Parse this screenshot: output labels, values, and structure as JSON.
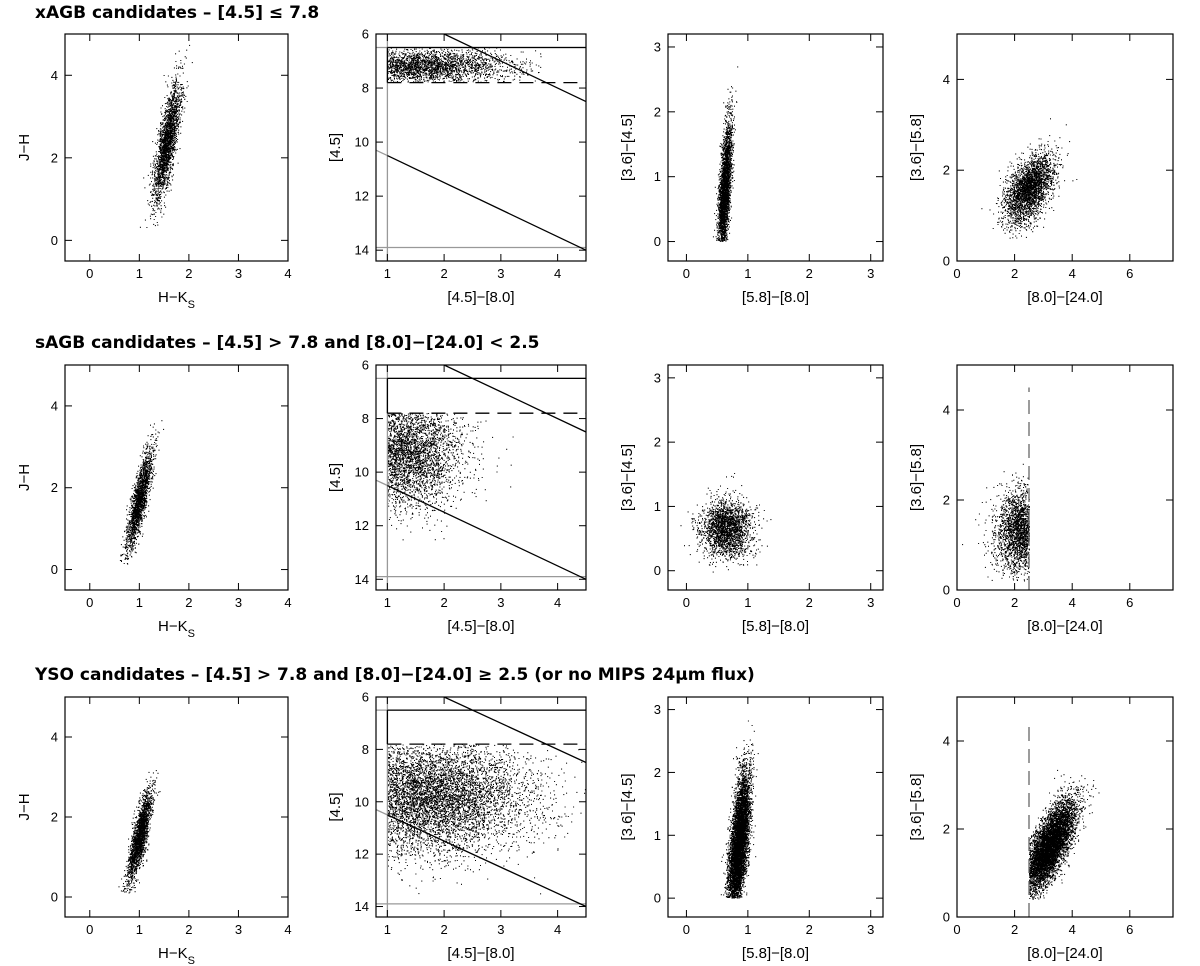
{
  "chart_data": [
    {
      "type": "scatter",
      "title": "xAGB candidates – [4.5] ≤ 7.8",
      "panels": [
        {
          "type": "scatter",
          "xlabel": "H−K",
          "xlabel_sub": "S",
          "ylabel": "J−H",
          "xlim": [
            -0.5,
            4
          ],
          "ylim": [
            -0.5,
            5
          ],
          "xticks": [
            "0",
            "1",
            "2",
            "3",
            "4"
          ],
          "yticks": [
            "0",
            "2",
            "4"
          ],
          "density": {
            "center": [
              1.55,
              2.35
            ],
            "spread": [
              0.45,
              0.75
            ],
            "orient": 1.3,
            "count": 2300,
            "extent": [
              [
                0.3,
                2.8
              ],
              [
                0.3,
                4.8
              ]
            ]
          },
          "lines": []
        },
        {
          "type": "scatter",
          "xlabel": "[4.5]−[8.0]",
          "ylabel": "[4.5]",
          "xlim": [
            0.8,
            4.5
          ],
          "ylim": [
            14.4,
            6
          ],
          "yinvert": true,
          "xticks": [
            "1",
            "2",
            "3",
            "4"
          ],
          "yticks": [
            "6",
            "8",
            "10",
            "12",
            "14"
          ],
          "density": {
            "center": [
              1.6,
              7.2
            ],
            "spread": [
              0.8,
              0.3
            ],
            "orient": 0,
            "count": 3000,
            "extent": [
              [
                1.0,
                3.7
              ],
              [
                6.5,
                7.8
              ]
            ]
          },
          "lines": [
            {
              "x": [
                0.8,
                4.5
              ],
              "y": [
                6.5,
                6.5
              ],
              "color": "#999999",
              "dash": false
            },
            {
              "x": [
                0.8,
                4.5
              ],
              "y": [
                13.9,
                13.9
              ],
              "color": "#999999",
              "dash": false
            },
            {
              "x": [
                1.0,
                1.0
              ],
              "y": [
                6.0,
                14.4
              ],
              "color": "#999999",
              "dash": false
            },
            {
              "x": [
                0.8,
                1.0
              ],
              "y": [
                10.3,
                10.5
              ],
              "color": "#999999",
              "dash": false
            },
            {
              "x": [
                1.0,
                4.5
              ],
              "y": [
                10.5,
                14.0
              ],
              "color": "#000000",
              "dash": false
            },
            {
              "x": [
                1.0,
                1.0
              ],
              "y": [
                6.5,
                7.8
              ],
              "color": "#000000",
              "dash": false
            },
            {
              "x": [
                1.0,
                4.5
              ],
              "y": [
                6.5,
                6.5
              ],
              "color": "#000000",
              "dash": false
            },
            {
              "x": [
                2.0,
                4.5
              ],
              "y": [
                6.0,
                8.5
              ],
              "color": "#000000",
              "dash": false
            },
            {
              "x": [
                1.0,
                4.5
              ],
              "y": [
                7.8,
                7.8
              ],
              "color": "#000000",
              "dash": true
            }
          ]
        },
        {
          "type": "scatter",
          "xlabel": "[5.8]−[8.0]",
          "ylabel": "[3.6]−[4.5]",
          "xlim": [
            -0.3,
            3.2
          ],
          "ylim": [
            -0.3,
            3.2
          ],
          "xticks": [
            "0",
            "1",
            "2",
            "3"
          ],
          "yticks": [
            "0",
            "1",
            "2",
            "3"
          ],
          "density": {
            "center": [
              0.62,
              0.75
            ],
            "spread": [
              0.22,
              0.55
            ],
            "orient": 1.45,
            "count": 3000,
            "extent": [
              [
                -0.1,
                1.8
              ],
              [
                0.0,
                2.7
              ]
            ]
          },
          "lines": []
        },
        {
          "type": "scatter",
          "xlabel": "[8.0]−[24.0]",
          "ylabel": "[3.6]−[5.8]",
          "xlim": [
            0,
            7.5
          ],
          "ylim": [
            0,
            5
          ],
          "xticks": [
            "0",
            "2",
            "4",
            "6"
          ],
          "yticks": [
            "0",
            "2",
            "4"
          ],
          "density": {
            "center": [
              2.5,
              1.6
            ],
            "spread": [
              0.9,
              0.8
            ],
            "orient": 0.3,
            "count": 2800,
            "extent": [
              [
                0.2,
                5.8
              ],
              [
                0.5,
                4.5
              ]
            ]
          },
          "lines": []
        }
      ]
    },
    {
      "type": "scatter",
      "title": "sAGB candidates – [4.5] > 7.8 and [8.0]−[24.0] < 2.5",
      "panels": [
        {
          "type": "scatter",
          "xlabel": "H−K",
          "xlabel_sub": "S",
          "ylabel": "J−H",
          "xlim": [
            -0.5,
            4
          ],
          "ylim": [
            -0.5,
            5
          ],
          "xticks": [
            "0",
            "1",
            "2",
            "3",
            "4"
          ],
          "yticks": [
            "0",
            "2",
            "4"
          ],
          "density": {
            "center": [
              1.0,
              1.7
            ],
            "spread": [
              0.35,
              0.65
            ],
            "orient": 1.25,
            "count": 2000,
            "extent": [
              [
                0.1,
                2.2
              ],
              [
                0.1,
                3.8
              ]
            ]
          },
          "lines": []
        },
        {
          "type": "scatter",
          "xlabel": "[4.5]−[8.0]",
          "ylabel": "[4.5]",
          "xlim": [
            0.8,
            4.5
          ],
          "ylim": [
            14.4,
            6
          ],
          "yinvert": true,
          "xticks": [
            "1",
            "2",
            "3",
            "4"
          ],
          "yticks": [
            "6",
            "8",
            "10",
            "12",
            "14"
          ],
          "density": {
            "center": [
              1.3,
              9.3
            ],
            "spread": [
              0.5,
              1.0
            ],
            "orient": 0,
            "count": 4200,
            "extent": [
              [
                1.0,
                4.2
              ],
              [
                7.8,
                13.0
              ]
            ]
          },
          "lines": [
            {
              "x": [
                0.8,
                4.5
              ],
              "y": [
                6.5,
                6.5
              ],
              "color": "#999999",
              "dash": false
            },
            {
              "x": [
                0.8,
                4.5
              ],
              "y": [
                13.9,
                13.9
              ],
              "color": "#999999",
              "dash": false
            },
            {
              "x": [
                1.0,
                1.0
              ],
              "y": [
                6.0,
                14.4
              ],
              "color": "#999999",
              "dash": false
            },
            {
              "x": [
                0.8,
                1.0
              ],
              "y": [
                10.3,
                10.5
              ],
              "color": "#999999",
              "dash": false
            },
            {
              "x": [
                1.0,
                4.5
              ],
              "y": [
                10.5,
                14.0
              ],
              "color": "#000000",
              "dash": false
            },
            {
              "x": [
                1.0,
                1.0
              ],
              "y": [
                6.5,
                7.8
              ],
              "color": "#000000",
              "dash": false
            },
            {
              "x": [
                1.0,
                4.5
              ],
              "y": [
                6.5,
                6.5
              ],
              "color": "#000000",
              "dash": false
            },
            {
              "x": [
                2.0,
                4.5
              ],
              "y": [
                6.0,
                8.5
              ],
              "color": "#000000",
              "dash": false
            },
            {
              "x": [
                1.0,
                4.5
              ],
              "y": [
                7.8,
                7.8
              ],
              "color": "#000000",
              "dash": true
            }
          ]
        },
        {
          "type": "scatter",
          "xlabel": "[5.8]−[8.0]",
          "ylabel": "[3.6]−[4.5]",
          "xlim": [
            -0.3,
            3.2
          ],
          "ylim": [
            -0.3,
            3.2
          ],
          "xticks": [
            "0",
            "1",
            "2",
            "3"
          ],
          "yticks": [
            "0",
            "1",
            "2",
            "3"
          ],
          "density": {
            "center": [
              0.65,
              0.65
            ],
            "spread": [
              0.2,
              0.22
            ],
            "orient": 0,
            "count": 2200,
            "extent": [
              [
                -0.1,
                1.8
              ],
              [
                -0.1,
                2.6
              ]
            ]
          },
          "lines": []
        },
        {
          "type": "scatter",
          "xlabel": "[8.0]−[24.0]",
          "ylabel": "[3.6]−[5.8]",
          "xlim": [
            0,
            7.5
          ],
          "ylim": [
            0,
            5
          ],
          "xticks": [
            "0",
            "2",
            "4",
            "6"
          ],
          "yticks": [
            "0",
            "2",
            "4"
          ],
          "density": {
            "center": [
              2.2,
              1.3
            ],
            "spread": [
              0.45,
              0.45
            ],
            "orient": 0,
            "count": 2600,
            "extent": [
              [
                0.0,
                2.5
              ],
              [
                0.2,
                4.5
              ]
            ]
          },
          "lines": [
            {
              "x": [
                2.5,
                2.5
              ],
              "y": [
                0,
                4.5
              ],
              "color": "#666666",
              "dash": true
            }
          ]
        }
      ]
    },
    {
      "type": "scatter",
      "title": "YSO candidates – [4.5] > 7.8 and [8.0]−[24.0] ≥ 2.5 (or no MIPS 24μm flux)",
      "panels": [
        {
          "type": "scatter",
          "xlabel": "H−K",
          "xlabel_sub": "S",
          "ylabel": "J−H",
          "xlim": [
            -0.5,
            4
          ],
          "ylim": [
            -0.5,
            5
          ],
          "xticks": [
            "0",
            "1",
            "2",
            "3",
            "4"
          ],
          "yticks": [
            "0",
            "2",
            "4"
          ],
          "density": {
            "center": [
              1.0,
              1.5
            ],
            "spread": [
              0.35,
              0.6
            ],
            "orient": 1.25,
            "count": 2200,
            "extent": [
              [
                0.0,
                2.3
              ],
              [
                0.1,
                3.9
              ]
            ]
          },
          "lines": []
        },
        {
          "type": "scatter",
          "xlabel": "[4.5]−[8.0]",
          "ylabel": "[4.5]",
          "xlim": [
            0.8,
            4.5
          ],
          "ylim": [
            14.4,
            6
          ],
          "yinvert": true,
          "xticks": [
            "1",
            "2",
            "3",
            "4"
          ],
          "yticks": [
            "6",
            "8",
            "10",
            "12",
            "14"
          ],
          "density": {
            "center": [
              1.7,
              9.8
            ],
            "spread": [
              0.9,
              1.1
            ],
            "orient": 0,
            "count": 7500,
            "extent": [
              [
                1.0,
                4.5
              ],
              [
                7.8,
                13.9
              ]
            ]
          },
          "lines": [
            {
              "x": [
                0.8,
                4.5
              ],
              "y": [
                6.5,
                6.5
              ],
              "color": "#999999",
              "dash": false
            },
            {
              "x": [
                0.8,
                4.5
              ],
              "y": [
                13.9,
                13.9
              ],
              "color": "#999999",
              "dash": false
            },
            {
              "x": [
                1.0,
                1.0
              ],
              "y": [
                6.0,
                14.4
              ],
              "color": "#999999",
              "dash": false
            },
            {
              "x": [
                0.8,
                1.0
              ],
              "y": [
                10.3,
                10.5
              ],
              "color": "#999999",
              "dash": false
            },
            {
              "x": [
                1.0,
                4.5
              ],
              "y": [
                10.5,
                14.0
              ],
              "color": "#000000",
              "dash": false
            },
            {
              "x": [
                1.0,
                1.0
              ],
              "y": [
                6.5,
                7.8
              ],
              "color": "#000000",
              "dash": false
            },
            {
              "x": [
                1.0,
                4.5
              ],
              "y": [
                6.5,
                6.5
              ],
              "color": "#000000",
              "dash": false
            },
            {
              "x": [
                2.0,
                4.5
              ],
              "y": [
                6.0,
                8.5
              ],
              "color": "#000000",
              "dash": false
            },
            {
              "x": [
                1.0,
                4.5
              ],
              "y": [
                7.8,
                7.8
              ],
              "color": "#000000",
              "dash": true
            }
          ]
        },
        {
          "type": "scatter",
          "xlabel": "[5.8]−[8.0]",
          "ylabel": "[3.6]−[4.5]",
          "xlim": [
            -0.3,
            3.2
          ],
          "ylim": [
            -0.3,
            3.2
          ],
          "xticks": [
            "0",
            "1",
            "2",
            "3"
          ],
          "yticks": [
            "0",
            "1",
            "2",
            "3"
          ],
          "density": {
            "center": [
              0.85,
              0.85
            ],
            "spread": [
              0.35,
              0.55
            ],
            "orient": 1.4,
            "count": 6500,
            "extent": [
              [
                -0.1,
                3.0
              ],
              [
                0.0,
                2.9
              ]
            ]
          },
          "lines": []
        },
        {
          "type": "scatter",
          "xlabel": "[8.0]−[24.0]",
          "ylabel": "[3.6]−[5.8]",
          "xlim": [
            0,
            7.5
          ],
          "ylim": [
            0,
            5
          ],
          "xticks": [
            "0",
            "2",
            "4",
            "6"
          ],
          "yticks": [
            "0",
            "2",
            "4"
          ],
          "density": {
            "center": [
              3.2,
              1.6
            ],
            "spread": [
              0.9,
              0.9
            ],
            "orient": 0.5,
            "count": 6500,
            "extent": [
              [
                2.5,
                7.5
              ],
              [
                0.4,
                5.0
              ]
            ]
          },
          "lines": [
            {
              "x": [
                2.5,
                2.5
              ],
              "y": [
                0,
                4.5
              ],
              "color": "#666666",
              "dash": true
            }
          ]
        }
      ]
    }
  ]
}
